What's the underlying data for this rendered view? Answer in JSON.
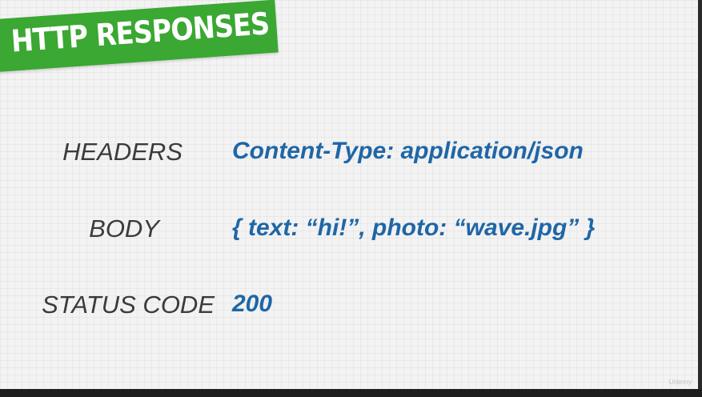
{
  "slide": {
    "title": "HTTP RESPONSES",
    "rows": [
      {
        "label": "HEADERS",
        "value": "Content-Type: application/json"
      },
      {
        "label": "BODY",
        "value": "{ text: “hi!”, photo: “wave.jpg” }"
      },
      {
        "label": "STATUS CODE",
        "value": "200"
      }
    ],
    "watermark": "Udemy"
  },
  "colors": {
    "banner": "#3aa832",
    "label": "#3b3b3b",
    "value": "#1f66a6",
    "background": "#f3f3f3"
  }
}
